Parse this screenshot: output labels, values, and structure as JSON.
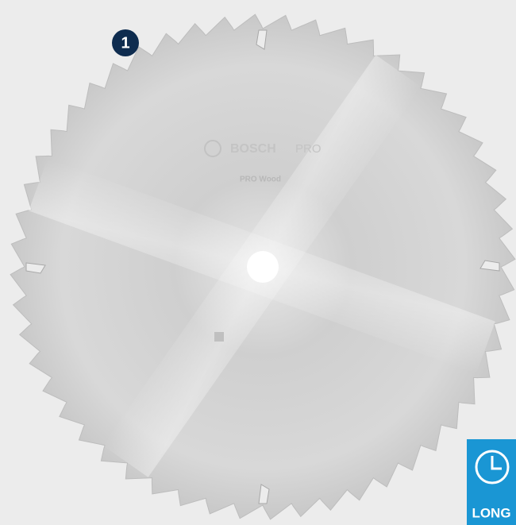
{
  "badge": {
    "number": "1"
  },
  "blade": {
    "brand": "BOSCH",
    "line": "PRO",
    "product": "PRO Wood"
  },
  "feature": {
    "label": "LONG"
  }
}
